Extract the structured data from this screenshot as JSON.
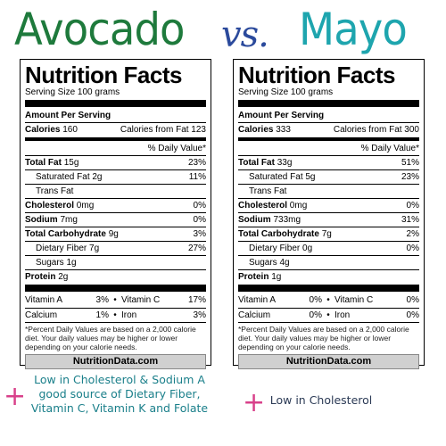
{
  "title": {
    "left": "Avocado",
    "vs": "vs.",
    "right": "Mayo"
  },
  "labels": [
    {
      "heading": "Nutrition Facts",
      "serving": "Serving Size  100 grams",
      "amount_per_serving": "Amount Per Serving",
      "calories_label": "Calories",
      "calories": "160",
      "calories_fat": "Calories from Fat 123",
      "dv_header": "% Daily Value*",
      "rows": [
        {
          "label": "Total Fat",
          "amount": "15g",
          "dv": "23%"
        },
        {
          "label": "Saturated Fat",
          "amount": "2g",
          "dv": "11%"
        },
        {
          "label": "Trans Fat",
          "amount": "",
          "dv": ""
        },
        {
          "label": "Cholesterol",
          "amount": "0mg",
          "dv": "0%"
        },
        {
          "label": "Sodium",
          "amount": "7mg",
          "dv": "0%"
        },
        {
          "label": "Total Carbohydrate",
          "amount": "9g",
          "dv": "3%"
        },
        {
          "label": "Dietary Fiber",
          "amount": "7g",
          "dv": "27%"
        },
        {
          "label": "Sugars",
          "amount": "1g",
          "dv": ""
        },
        {
          "label": "Protein",
          "amount": "2g",
          "dv": ""
        }
      ],
      "vitamins": [
        {
          "a_label": "Vitamin A",
          "a_val": "3%",
          "b_label": "Vitamin C",
          "b_val": "17%"
        },
        {
          "a_label": "Calcium",
          "a_val": "1%",
          "b_label": "Iron",
          "b_val": "3%"
        }
      ],
      "footnote": "*Percent Daily Values are based on a 2,000 calorie diet. Your daily values may be higher or lower depending on your calorie needs.",
      "source": "NutritionData.com"
    },
    {
      "heading": "Nutrition Facts",
      "serving": "Serving Size  100 grams",
      "amount_per_serving": "Amount Per Serving",
      "calories_label": "Calories",
      "calories": "333",
      "calories_fat": "Calories from Fat 300",
      "dv_header": "% Daily Value*",
      "rows": [
        {
          "label": "Total Fat",
          "amount": "33g",
          "dv": "51%"
        },
        {
          "label": "Saturated Fat",
          "amount": "5g",
          "dv": "23%"
        },
        {
          "label": "Trans Fat",
          "amount": "",
          "dv": ""
        },
        {
          "label": "Cholesterol",
          "amount": "0mg",
          "dv": "0%"
        },
        {
          "label": "Sodium",
          "amount": "733mg",
          "dv": "31%"
        },
        {
          "label": "Total Carbohydrate",
          "amount": "7g",
          "dv": "2%"
        },
        {
          "label": "Dietary Fiber",
          "amount": "0g",
          "dv": "0%"
        },
        {
          "label": "Sugars",
          "amount": "4g",
          "dv": ""
        },
        {
          "label": "Protein",
          "amount": "1g",
          "dv": ""
        }
      ],
      "vitamins": [
        {
          "a_label": "Vitamin A",
          "a_val": "0%",
          "b_label": "Vitamin C",
          "b_val": "0%"
        },
        {
          "a_label": "Calcium",
          "a_val": "0%",
          "b_label": "Iron",
          "b_val": "0%"
        }
      ],
      "footnote": "*Percent Daily Values are based on a 2,000 calorie diet. Your daily values may be higher or lower depending on your calorie needs.",
      "source": "NutritionData.com"
    }
  ],
  "notes": {
    "plus": "+",
    "left": "Low in Cholesterol & Sodium  A good source of Dietary Fiber, Vitamin C, Vitamin K and Folate",
    "right": "Low in Cholesterol"
  },
  "colors": {
    "avocado": "#1e7a3c",
    "vs": "#2b4a9c",
    "mayo": "#1ea5ae",
    "plus": "#d8408a",
    "note_left": "#1a7f8a"
  }
}
